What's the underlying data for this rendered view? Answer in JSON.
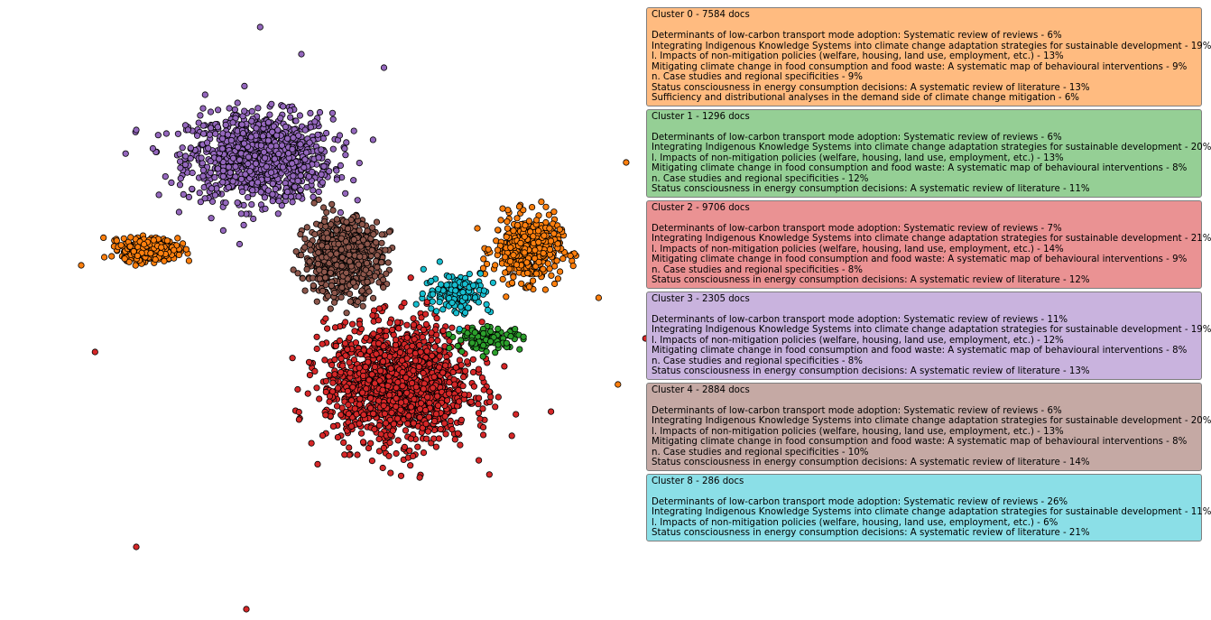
{
  "chart_data": {
    "type": "scatter",
    "title": "",
    "xlabel": "",
    "ylabel": "",
    "axes_visible": false,
    "grid": false,
    "point_style": {
      "edge_color": "#000000",
      "shape": "circle"
    },
    "series": [
      {
        "name": "Cluster 0",
        "color": "#ff7f0e",
        "centers": [
          [
            0.62,
            0.28
          ],
          [
            -0.75,
            0.28
          ]
        ],
        "spread": [
          [
            0.06,
            0.06
          ],
          [
            0.05,
            0.02
          ]
        ],
        "count": 900,
        "outliers": [
          [
            0.98,
            0.6
          ],
          [
            0.88,
            0.1
          ],
          [
            0.95,
            -0.22
          ],
          [
            -1.0,
            0.22
          ]
        ]
      },
      {
        "name": "Cluster 1",
        "color": "#2ca02c",
        "centers": [
          [
            0.48,
            -0.05
          ]
        ],
        "spread": [
          [
            0.06,
            0.02
          ]
        ],
        "count": 120,
        "outliers": []
      },
      {
        "name": "Cluster 2",
        "color": "#d62728",
        "centers": [
          [
            0.15,
            -0.22
          ]
        ],
        "spread": [
          [
            0.13,
            0.11
          ]
        ],
        "count": 1500,
        "outliers": [
          [
            -0.95,
            -0.1
          ],
          [
            -0.8,
            -0.82
          ],
          [
            -0.4,
            -1.05
          ],
          [
            0.3,
            -0.42
          ],
          [
            1.05,
            -0.05
          ]
        ]
      },
      {
        "name": "Cluster 3",
        "color": "#9467bd",
        "centers": [
          [
            -0.35,
            0.62
          ]
        ],
        "spread": [
          [
            0.13,
            0.08
          ]
        ],
        "count": 1100,
        "outliers": [
          [
            -0.35,
            1.1
          ],
          [
            -0.8,
            0.72
          ],
          [
            -0.55,
            0.85
          ],
          [
            0.1,
            0.95
          ],
          [
            -0.2,
            1.0
          ]
        ]
      },
      {
        "name": "Cluster 4",
        "color": "#8c564b",
        "centers": [
          [
            -0.05,
            0.25
          ]
        ],
        "spread": [
          [
            0.07,
            0.07
          ]
        ],
        "count": 700,
        "outliers": []
      },
      {
        "name": "Cluster 8",
        "color": "#17becf",
        "centers": [
          [
            0.37,
            0.12
          ]
        ],
        "spread": [
          [
            0.06,
            0.04
          ]
        ],
        "count": 140,
        "outliers": []
      }
    ],
    "legend_placement": "right"
  },
  "clusters": [
    {
      "title": "Cluster 0 - 7584 docs",
      "color": "#ffbb80",
      "lines": [
        "Determinants of low-carbon transport mode adoption: Systematic review of reviews - 6%",
        "Integrating Indigenous Knowledge Systems into climate change adaptation strategies for sustainable development - 19%",
        "l. Impacts of non-mitigation policies (welfare, housing, land use, employment, etc.) - 13%",
        "Mitigating climate change in food consumption and food waste: A systematic map of behavioural interventions - 9%",
        "n. Case studies and regional specificities - 9%",
        "Status consciousness in energy consumption decisions: A systematic review of literature - 13%",
        "Sufficiency and distributional analyses in the demand side of climate change mitigation - 6%"
      ]
    },
    {
      "title": "Cluster 1 - 1296 docs",
      "color": "#95cf95",
      "lines": [
        "Determinants of low-carbon transport mode adoption: Systematic review of reviews - 6%",
        "Integrating Indigenous Knowledge Systems into climate change adaptation strategies for sustainable development - 20%",
        "l. Impacts of non-mitigation policies (welfare, housing, land use, employment, etc.) - 13%",
        "Mitigating climate change in food consumption and food waste: A systematic map of behavioural interventions - 8%",
        "n. Case studies and regional specificities - 12%",
        "Status consciousness in energy consumption decisions: A systematic review of literature - 11%"
      ]
    },
    {
      "title": "Cluster 2 - 9706 docs",
      "color": "#ea9293",
      "lines": [
        "Determinants of low-carbon transport mode adoption: Systematic review of reviews - 7%",
        "Integrating Indigenous Knowledge Systems into climate change adaptation strategies for sustainable development - 21%",
        "l. Impacts of non-mitigation policies (welfare, housing, land use, employment, etc.) - 14%",
        "Mitigating climate change in food consumption and food waste: A systematic map of behavioural interventions - 9%",
        "n. Case studies and regional specificities - 8%",
        "Status consciousness in energy consumption decisions: A systematic review of literature - 12%"
      ]
    },
    {
      "title": "Cluster 3 - 2305 docs",
      "color": "#c9b3de",
      "lines": [
        "Determinants of low-carbon transport mode adoption: Systematic review of reviews - 11%",
        "Integrating Indigenous Knowledge Systems into climate change adaptation strategies for sustainable development - 19%",
        "l. Impacts of non-mitigation policies (welfare, housing, land use, employment, etc.) - 12%",
        "Mitigating climate change in food consumption and food waste: A systematic map of behavioural interventions - 8%",
        "n. Case studies and regional specificities - 8%",
        "Status consciousness in energy consumption decisions: A systematic review of literature - 13%"
      ]
    },
    {
      "title": "Cluster 4 - 2884 docs",
      "color": "#c5a9a4",
      "lines": [
        "Determinants of low-carbon transport mode adoption: Systematic review of reviews - 6%",
        "Integrating Indigenous Knowledge Systems into climate change adaptation strategies for sustainable development - 20%",
        "l. Impacts of non-mitigation policies (welfare, housing, land use, employment, etc.) - 13%",
        "Mitigating climate change in food consumption and food waste: A systematic map of behavioural interventions - 8%",
        "n. Case studies and regional specificities - 10%",
        "Status consciousness in energy consumption decisions: A systematic review of literature - 14%"
      ]
    },
    {
      "title": "Cluster 8 - 286 docs",
      "color": "#8bdfe7",
      "lines": [
        "Determinants of low-carbon transport mode adoption: Systematic review of reviews - 26%",
        "Integrating Indigenous Knowledge Systems into climate change adaptation strategies for sustainable development - 11%",
        "l. Impacts of non-mitigation policies (welfare, housing, land use, employment, etc.) - 6%",
        "Status consciousness in energy consumption decisions: A systematic review of literature - 21%"
      ]
    }
  ]
}
